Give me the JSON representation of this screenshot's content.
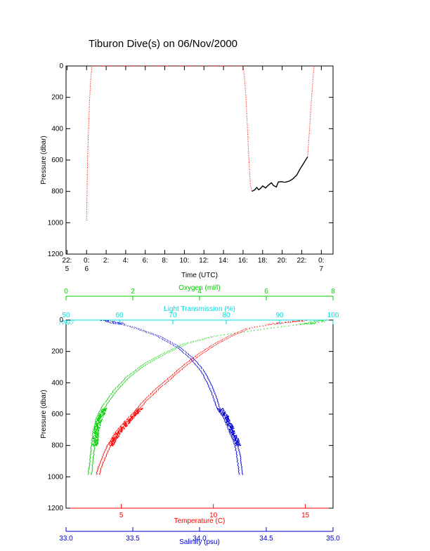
{
  "title": "Tiburon Dive(s) on 06/Nov/2000",
  "colors": {
    "black": "#000000",
    "red": "#ff0000",
    "green": "#00cc00",
    "cyan": "#00dddd",
    "blue": "#0000cc"
  },
  "chart_data": [
    {
      "type": "line",
      "xlabel": "Time (UTC)",
      "ylabel": "Pressure (dbar)",
      "x_unit": "hours since 00:00 UTC 06/Nov/2000",
      "xlim": [
        -2.1,
        25.2
      ],
      "ylim": [
        1200,
        0
      ],
      "x_ticks": [
        {
          "v": -2,
          "l1": "22:",
          "l2": "5"
        },
        {
          "v": 0,
          "l1": "0:",
          "l2": "6"
        },
        {
          "v": 2,
          "l1": "2:",
          "l2": ""
        },
        {
          "v": 4,
          "l1": "4:",
          "l2": ""
        },
        {
          "v": 6,
          "l1": "6:",
          "l2": ""
        },
        {
          "v": 8,
          "l1": "8:",
          "l2": ""
        },
        {
          "v": 10,
          "l1": "10:",
          "l2": ""
        },
        {
          "v": 12,
          "l1": "12:",
          "l2": ""
        },
        {
          "v": 14,
          "l1": "14:",
          "l2": ""
        },
        {
          "v": 16,
          "l1": "16:",
          "l2": ""
        },
        {
          "v": 18,
          "l1": "18:",
          "l2": ""
        },
        {
          "v": 20,
          "l1": "20:",
          "l2": ""
        },
        {
          "v": 22,
          "l1": "22:",
          "l2": ""
        },
        {
          "v": 24,
          "l1": "0:",
          "l2": "7"
        }
      ],
      "y_ticks": [
        0,
        200,
        400,
        600,
        800,
        1000,
        1200
      ],
      "series": [
        {
          "color": "red",
          "style": "dotted",
          "points": [
            [
              0.0,
              985
            ],
            [
              0.05,
              800
            ],
            [
              0.1,
              600
            ],
            [
              0.2,
              400
            ],
            [
              0.3,
              230
            ],
            [
              0.4,
              100
            ],
            [
              0.55,
              0
            ],
            [
              16.0,
              0
            ],
            [
              16.15,
              80
            ],
            [
              16.3,
              200
            ],
            [
              16.45,
              400
            ],
            [
              16.6,
              600
            ],
            [
              16.75,
              760
            ],
            [
              16.9,
              800
            ]
          ]
        },
        {
          "color": "black",
          "style": "solid",
          "points": [
            [
              16.9,
              800
            ],
            [
              17.2,
              790
            ],
            [
              17.4,
              775
            ],
            [
              17.6,
              790
            ],
            [
              17.8,
              780
            ],
            [
              18.0,
              765
            ],
            [
              18.3,
              778
            ],
            [
              18.6,
              760
            ],
            [
              18.9,
              745
            ],
            [
              19.1,
              762
            ],
            [
              19.4,
              772
            ],
            [
              19.6,
              740
            ],
            [
              19.9,
              738
            ],
            [
              20.3,
              742
            ],
            [
              20.7,
              735
            ],
            [
              21.1,
              720
            ],
            [
              21.5,
              695
            ],
            [
              21.8,
              660
            ],
            [
              22.1,
              630
            ],
            [
              22.4,
              600
            ],
            [
              22.6,
              580
            ]
          ]
        },
        {
          "color": "red",
          "style": "dotted",
          "points": [
            [
              22.6,
              580
            ],
            [
              22.8,
              400
            ],
            [
              22.95,
              250
            ],
            [
              23.1,
              120
            ],
            [
              23.25,
              0
            ]
          ]
        }
      ]
    },
    {
      "type": "scatter",
      "ylabel": "Pressure (dbar)",
      "ylim": [
        1200,
        0
      ],
      "y_ticks": [
        0,
        200,
        400,
        600,
        800,
        1000,
        1200
      ],
      "axes": {
        "oxygen": {
          "label": "Oxygen (ml/l)",
          "range": [
            0,
            8
          ],
          "ticks": [
            0,
            2,
            4,
            6,
            8
          ],
          "position": "top",
          "color": "green"
        },
        "transmission": {
          "label": "Light Transmission (%)",
          "range": [
            50,
            100
          ],
          "ticks": [
            50,
            60,
            70,
            80,
            90,
            100
          ],
          "position": "top",
          "color": "cyan"
        },
        "temperature": {
          "label": "Temperature (C)",
          "range": [
            2.0,
            16.5
          ],
          "ticks": [
            5,
            10,
            15
          ],
          "position": "bottom",
          "color": "red"
        },
        "salinity": {
          "label": "Salinity (psu)",
          "range": [
            33.0,
            35.0
          ],
          "ticks": [
            "33.0",
            "33.5",
            "34.0",
            "34.5",
            "35.0"
          ],
          "position": "bottom",
          "color": "blue"
        }
      },
      "profiles": [
        {
          "axis": "oxygen",
          "color": "green",
          "dense_to": 800,
          "points": [
            [
              7.7,
              0
            ],
            [
              7.3,
              20
            ],
            [
              6.5,
              40
            ],
            [
              5.5,
              70
            ],
            [
              4.5,
              100
            ],
            [
              3.6,
              150
            ],
            [
              3.0,
              210
            ],
            [
              2.4,
              280
            ],
            [
              1.9,
              360
            ],
            [
              1.5,
              450
            ],
            [
              1.2,
              540
            ],
            [
              1.0,
              620
            ],
            [
              0.9,
              700
            ],
            [
              0.85,
              800
            ],
            [
              0.8,
              900
            ],
            [
              0.75,
              985
            ]
          ]
        },
        {
          "axis": "temperature",
          "color": "red",
          "dense_to": 800,
          "points": [
            [
              15.0,
              0
            ],
            [
              13.5,
              20
            ],
            [
              12.0,
              50
            ],
            [
              11.0,
              100
            ],
            [
              10.2,
              150
            ],
            [
              9.4,
              210
            ],
            [
              8.6,
              280
            ],
            [
              7.8,
              360
            ],
            [
              7.0,
              440
            ],
            [
              6.3,
              520
            ],
            [
              5.8,
              590
            ],
            [
              5.3,
              650
            ],
            [
              4.8,
              720
            ],
            [
              4.4,
              800
            ],
            [
              4.1,
              880
            ],
            [
              3.9,
              940
            ],
            [
              3.8,
              985
            ]
          ]
        },
        {
          "axis": "salinity",
          "color": "blue",
          "dense_to": 800,
          "points": [
            [
              33.3,
              0
            ],
            [
              33.5,
              40
            ],
            [
              33.7,
              100
            ],
            [
              33.85,
              170
            ],
            [
              33.95,
              240
            ],
            [
              34.03,
              320
            ],
            [
              34.08,
              400
            ],
            [
              34.12,
              480
            ],
            [
              34.15,
              560
            ],
            [
              34.2,
              620
            ],
            [
              34.24,
              700
            ],
            [
              34.28,
              780
            ],
            [
              34.3,
              850
            ],
            [
              34.31,
              920
            ],
            [
              34.32,
              985
            ]
          ]
        },
        {
          "axis": "transmission",
          "color": "cyan",
          "dense_to": 0,
          "points": [
            [
              50,
              0
            ],
            [
              50,
              8
            ]
          ]
        }
      ]
    }
  ]
}
